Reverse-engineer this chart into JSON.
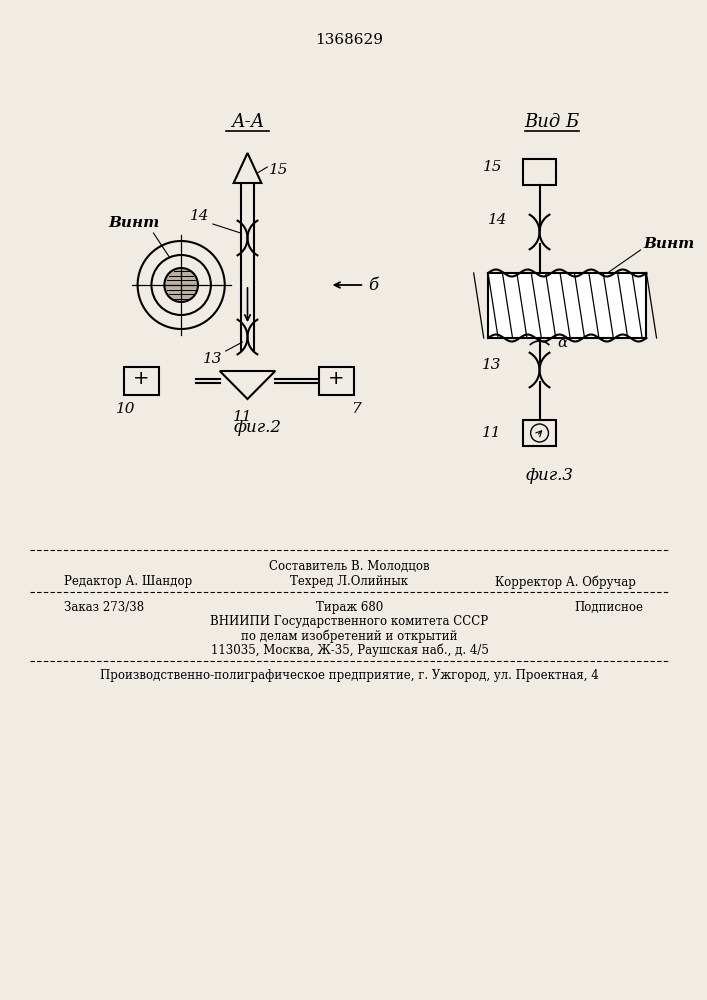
{
  "patent_number": "1368629",
  "bg_color": "#f0ece4",
  "fig2_label": "фиг.2",
  "fig3_label": "фиг.3",
  "section_label": "А-А",
  "view_label": "Вид Б",
  "vint_label": "Винт",
  "arrow_label": "б",
  "alpha_label": "α",
  "footer_line1_left": "Редактор А. Шандор",
  "footer_line1_center": "Составитель В. Молодцов",
  "footer_line1_right": "Корректор А. Обручар",
  "footer_line2_center": "Техред Л.Олийнык",
  "footer_line3_left": "Заказ 273/38",
  "footer_line3_center": "Тираж 680",
  "footer_line3_right": "Подписное",
  "footer_line4": "ВНИИПИ Государственного комитета СССР",
  "footer_line5": "по делам изобретений и открытий",
  "footer_line6": "113035, Москва, Ж-35, Раушская наб., д. 4/5",
  "footer_bottom": "Производственно-полиграфическое предприятие, г. Ужгород, ул. Проектная, 4"
}
